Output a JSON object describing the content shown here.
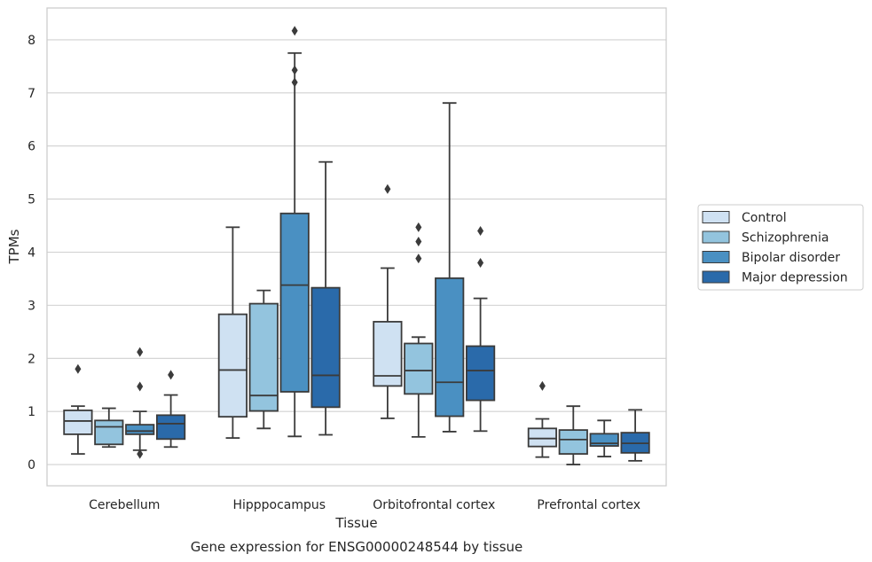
{
  "chart_data": {
    "type": "box",
    "categories": [
      "Cerebellum",
      "Hipppocampus",
      "Orbitofrontal cortex",
      "Prefrontal cortex"
    ],
    "xlabel": "Tissue",
    "ylabel": "TPMs",
    "caption": "Gene expression for ENSG00000248544 by tissue",
    "ylim": [
      -0.4,
      8.6
    ],
    "yticks": [
      0,
      1,
      2,
      3,
      4,
      5,
      6,
      7,
      8
    ],
    "grid": true,
    "legend_position": "right",
    "series": [
      {
        "name": "Control",
        "color": "#cfe1f2",
        "boxes": [
          {
            "whislo": 0.2,
            "q1": 0.57,
            "med": 0.82,
            "q3": 1.02,
            "whishi": 1.1,
            "fliers": [
              1.8
            ]
          },
          {
            "whislo": 0.5,
            "q1": 0.9,
            "med": 1.78,
            "q3": 2.83,
            "whishi": 4.47,
            "fliers": []
          },
          {
            "whislo": 0.87,
            "q1": 1.48,
            "med": 1.67,
            "q3": 2.69,
            "whishi": 3.7,
            "fliers": [
              5.19
            ]
          },
          {
            "whislo": 0.14,
            "q1": 0.34,
            "med": 0.49,
            "q3": 0.68,
            "whishi": 0.86,
            "fliers": [
              1.48
            ]
          }
        ]
      },
      {
        "name": "Schizophrenia",
        "color": "#93c4de",
        "boxes": [
          {
            "whislo": 0.33,
            "q1": 0.38,
            "med": 0.71,
            "q3": 0.83,
            "whishi": 1.06,
            "fliers": []
          },
          {
            "whislo": 0.68,
            "q1": 1.01,
            "med": 1.3,
            "q3": 3.03,
            "whishi": 3.28,
            "fliers": []
          },
          {
            "whislo": 0.52,
            "q1": 1.33,
            "med": 1.77,
            "q3": 2.28,
            "whishi": 2.4,
            "fliers": [
              3.88,
              4.2,
              4.47
            ]
          },
          {
            "whislo": 0.0,
            "q1": 0.2,
            "med": 0.47,
            "q3": 0.65,
            "whishi": 1.1,
            "fliers": []
          }
        ]
      },
      {
        "name": "Bipolar disorder",
        "color": "#4a90c2",
        "boxes": [
          {
            "whislo": 0.27,
            "q1": 0.57,
            "med": 0.63,
            "q3": 0.75,
            "whishi": 1.0,
            "fliers": [
              0.2,
              1.47,
              2.12
            ]
          },
          {
            "whislo": 0.53,
            "q1": 1.37,
            "med": 3.38,
            "q3": 4.73,
            "whishi": 7.75,
            "fliers": [
              7.2,
              7.43,
              8.17
            ]
          },
          {
            "whislo": 0.62,
            "q1": 0.91,
            "med": 1.55,
            "q3": 3.51,
            "whishi": 6.81,
            "fliers": []
          },
          {
            "whislo": 0.15,
            "q1": 0.35,
            "med": 0.4,
            "q3": 0.58,
            "whishi": 0.83,
            "fliers": []
          }
        ]
      },
      {
        "name": "Major depression",
        "color": "#2a6aaa",
        "boxes": [
          {
            "whislo": 0.33,
            "q1": 0.48,
            "med": 0.77,
            "q3": 0.93,
            "whishi": 1.31,
            "fliers": [
              1.69
            ]
          },
          {
            "whislo": 0.56,
            "q1": 1.08,
            "med": 1.68,
            "q3": 3.33,
            "whishi": 5.7,
            "fliers": []
          },
          {
            "whislo": 0.63,
            "q1": 1.21,
            "med": 1.77,
            "q3": 2.23,
            "whishi": 3.13,
            "fliers": [
              3.8,
              4.4
            ]
          },
          {
            "whislo": 0.07,
            "q1": 0.22,
            "med": 0.4,
            "q3": 0.6,
            "whishi": 1.03,
            "fliers": []
          }
        ]
      }
    ]
  }
}
